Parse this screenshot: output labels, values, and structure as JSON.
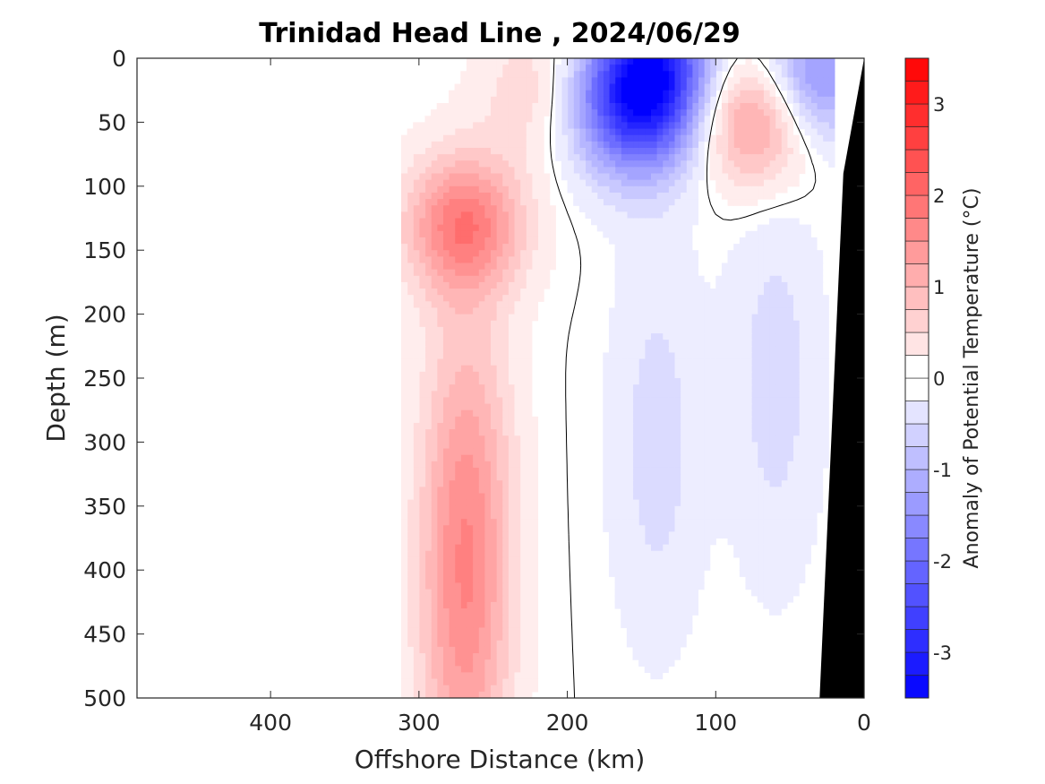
{
  "chart_data": {
    "type": "heatmap",
    "title": "Trinidad Head Line , 2024/06/29",
    "xlabel": "Offshore Distance (km)",
    "ylabel": "Depth (m)",
    "x_reversed": true,
    "y_reversed": true,
    "xlim": [
      0,
      490
    ],
    "ylim": [
      0,
      500
    ],
    "x_ticks": [
      400,
      300,
      200,
      100,
      0
    ],
    "y_ticks": [
      0,
      50,
      100,
      150,
      200,
      250,
      300,
      350,
      400,
      450,
      500
    ],
    "colorbar": {
      "label": "Anomaly of Potential Temperature (°C)",
      "range": [
        -3.5,
        3.5
      ],
      "step": 0.25,
      "ticks": [
        -3,
        -2,
        -1,
        0,
        1,
        2,
        3
      ],
      "colormap": "blue-white-red",
      "cold_color": "#0000ff",
      "warm_color": "#ff0000",
      "neutral_color": "#ffffff"
    },
    "bottom_color": "#000000",
    "data_extent_km": [
      20,
      310
    ],
    "anomaly_features": [
      {
        "x_km": 270,
        "depth_m": 130,
        "value": 1.75
      },
      {
        "x_km": 268,
        "depth_m": 330,
        "value": 1.0
      },
      {
        "x_km": 270,
        "depth_m": 460,
        "value": 1.0
      },
      {
        "x_km": 215,
        "depth_m": 25,
        "value": 0.8
      },
      {
        "x_km": 72,
        "depth_m": 45,
        "value": 1.75
      },
      {
        "x_km": 140,
        "depth_m": 5,
        "value": -2.6
      },
      {
        "x_km": 150,
        "depth_m": 50,
        "value": -1.5
      },
      {
        "x_km": 180,
        "depth_m": 30,
        "value": -1.0
      },
      {
        "x_km": 35,
        "depth_m": 15,
        "value": -1.75
      },
      {
        "x_km": 140,
        "depth_m": 300,
        "value": -0.5
      },
      {
        "x_km": 60,
        "depth_m": 250,
        "value": -0.5
      }
    ]
  }
}
